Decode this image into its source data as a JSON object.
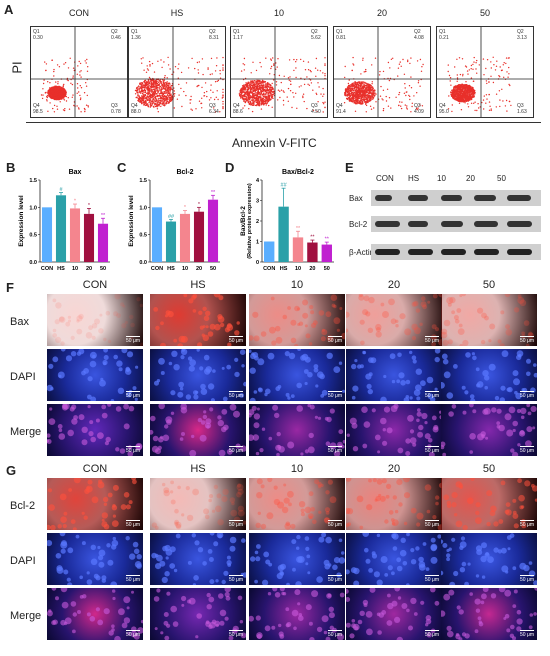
{
  "panel_letters": {
    "A": "A",
    "B": "B",
    "C": "C",
    "D": "D",
    "E": "E",
    "F": "F",
    "G": "G"
  },
  "groups": [
    "CON",
    "HS",
    "10",
    "20",
    "50"
  ],
  "flow": {
    "y_label": "PI",
    "x_label": "Annexin V-FITC",
    "plots": [
      {
        "title": "CON",
        "q1": "Q1",
        "q2": "Q2",
        "q3": "Q3",
        "q4": "Q4",
        "v1": "0.30",
        "v2": "0.46",
        "v3": "0.78",
        "v4": "98.5"
      },
      {
        "title": "HS",
        "q1": "Q1",
        "q2": "Q2",
        "q3": "Q3",
        "q4": "Q4",
        "v1": "1.36",
        "v2": "8.31",
        "v3": "6.34",
        "v4": "88.0"
      },
      {
        "title": "10",
        "q1": "Q1",
        "q2": "Q2",
        "q3": "Q3",
        "q4": "Q4",
        "v1": "1.17",
        "v2": "5.62",
        "v3": "4.50",
        "v4": "88.6"
      },
      {
        "title": "20",
        "q1": "Q1",
        "q2": "Q2",
        "q3": "Q3",
        "q4": "Q4",
        "v1": "0.81",
        "v2": "4.08",
        "v3": "4.09",
        "v4": "91.4"
      },
      {
        "title": "50",
        "q1": "Q1",
        "q2": "Q2",
        "q3": "Q3",
        "q4": "Q4",
        "v1": "0.21",
        "v2": "3.13",
        "v3": "1.63",
        "v4": "95.0"
      }
    ]
  },
  "chart_data": [
    {
      "type": "bar",
      "title": "Bax",
      "ylabel": "Expression level",
      "categories": [
        "CON",
        "HS",
        "10",
        "20",
        "50"
      ],
      "values": [
        1.0,
        1.22,
        0.98,
        0.88,
        0.7
      ],
      "errors": [
        0.0,
        0.05,
        0.08,
        0.1,
        0.1
      ],
      "significance": [
        "",
        "#",
        "*",
        "*",
        "**"
      ],
      "ylim": [
        0,
        1.5
      ],
      "yticks": [
        "0.0",
        "0.5",
        "1.0",
        "1.5"
      ],
      "colors": [
        "#5aaeff",
        "#2aa0a8",
        "#f4858e",
        "#a0103f",
        "#c020d0"
      ]
    },
    {
      "type": "bar",
      "title": "Bcl-2",
      "ylabel": "Expression level",
      "categories": [
        "CON",
        "HS",
        "10",
        "20",
        "50"
      ],
      "values": [
        1.0,
        0.74,
        0.88,
        0.92,
        1.14
      ],
      "errors": [
        0.0,
        0.04,
        0.06,
        0.08,
        0.08
      ],
      "significance": [
        "",
        "##",
        "*",
        "*",
        "**"
      ],
      "ylim": [
        0,
        1.5
      ],
      "yticks": [
        "0.0",
        "0.5",
        "1.0",
        "1.5"
      ],
      "colors": [
        "#5aaeff",
        "#2aa0a8",
        "#f4858e",
        "#a0103f",
        "#c020d0"
      ]
    },
    {
      "type": "bar",
      "title": "Bax/Bcl-2",
      "ylabel": "Bax/Bcl-2",
      "ylabel2": "(Relative protein expression)",
      "categories": [
        "CON",
        "HS",
        "10",
        "20",
        "50"
      ],
      "values": [
        1.0,
        2.7,
        1.2,
        0.95,
        0.85
      ],
      "errors": [
        0.0,
        0.9,
        0.3,
        0.12,
        0.12
      ],
      "significance": [
        "",
        "##",
        "**",
        "**",
        "**"
      ],
      "ylim": [
        0,
        4
      ],
      "yticks": [
        "0",
        "1",
        "2",
        "3",
        "4"
      ],
      "colors": [
        "#5aaeff",
        "#2aa0a8",
        "#f4858e",
        "#a0103f",
        "#c020d0"
      ]
    }
  ],
  "western_blot": {
    "headers": [
      "CON",
      "HS",
      "10",
      "20",
      "50"
    ],
    "rows": [
      "Bax",
      "Bcl-2",
      "β-Actin"
    ]
  },
  "if_bax": {
    "headers": [
      "CON",
      "HS",
      "10",
      "20",
      "50"
    ],
    "row_labels": [
      "Bax",
      "DAPI",
      "Merge"
    ],
    "scale": "50 μm"
  },
  "if_bcl2": {
    "headers": [
      "CON",
      "HS",
      "10",
      "20",
      "50"
    ],
    "row_labels": [
      "Bcl-2",
      "DAPI",
      "Merge"
    ],
    "scale": "50 μm"
  },
  "colors": {
    "flow_dots": "#e8302b",
    "red_stain": "#c8261e",
    "blue_stain": "#2a3fbf",
    "merge": "#6a2a9a"
  }
}
